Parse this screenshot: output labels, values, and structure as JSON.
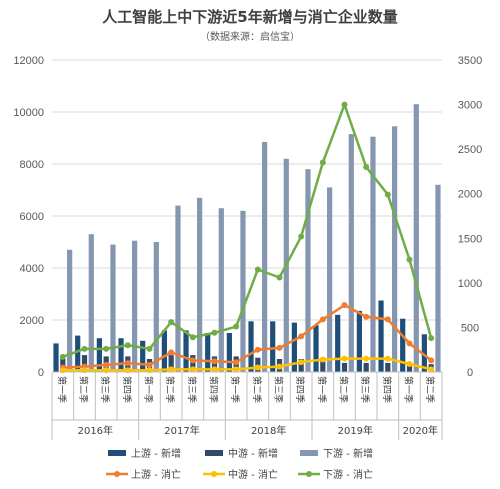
{
  "chart_data": {
    "type": "bar",
    "title": "人工智能上中下游近5年新增与消亡企业数量",
    "subtitle": "（数据来源：启信宝）",
    "categories": [
      "第一季",
      "第二季",
      "第三季",
      "第四季",
      "第一季",
      "第二季",
      "第三季",
      "第四季",
      "第一季",
      "第二季",
      "第三季",
      "第四季",
      "第一季",
      "第二季",
      "第三季",
      "第四季",
      "第一季",
      "第二季"
    ],
    "years": [
      {
        "label": "2016年",
        "start": 0,
        "end": 3
      },
      {
        "label": "2017年",
        "start": 4,
        "end": 7
      },
      {
        "label": "2018年",
        "start": 8,
        "end": 11
      },
      {
        "label": "2019年",
        "start": 12,
        "end": 15
      },
      {
        "label": "2020年",
        "start": 16,
        "end": 17
      }
    ],
    "ylim_left": [
      0,
      12000
    ],
    "yticks_left": [
      "0",
      "2000",
      "4000",
      "6000",
      "8000",
      "10000",
      "12000"
    ],
    "ylim_right": [
      0,
      3500
    ],
    "yticks_right": [
      "0",
      "500",
      "1000",
      "1500",
      "2000",
      "2500",
      "3000",
      "3500"
    ],
    "grid": true,
    "legend_position": "bottom",
    "series": [
      {
        "name": "上游 - 新增",
        "kind": "bar",
        "axis": "left",
        "color": "#1f4e79",
        "values": [
          1100,
          1400,
          1300,
          1300,
          1200,
          1600,
          1600,
          1500,
          1500,
          1950,
          1950,
          1900,
          1800,
          2200,
          2350,
          2750,
          2050,
          1450
        ]
      },
      {
        "name": "中游 - 新增",
        "kind": "bar",
        "axis": "left",
        "color": "#2f4a6b",
        "values": [
          500,
          650,
          600,
          600,
          500,
          650,
          650,
          600,
          600,
          550,
          500,
          500,
          450,
          350,
          350,
          350,
          300,
          300
        ]
      },
      {
        "name": "下游 - 新增",
        "kind": "bar",
        "axis": "left",
        "color": "#8496b0",
        "values": [
          4700,
          5300,
          4900,
          5050,
          5000,
          6400,
          6700,
          6300,
          6200,
          8850,
          8200,
          7800,
          7100,
          9150,
          9050,
          9450,
          10300,
          7200
        ]
      },
      {
        "name": "上游 - 消亡",
        "kind": "line",
        "axis": "right",
        "color": "#ed7d31",
        "values": [
          50,
          60,
          80,
          100,
          80,
          220,
          130,
          120,
          110,
          250,
          270,
          400,
          590,
          750,
          620,
          590,
          320,
          130
        ]
      },
      {
        "name": "中游 - 消亡",
        "kind": "line",
        "axis": "right",
        "color": "#ffc000",
        "values": [
          20,
          20,
          20,
          20,
          20,
          30,
          30,
          30,
          30,
          50,
          60,
          110,
          140,
          150,
          150,
          150,
          90,
          30
        ]
      },
      {
        "name": "下游 - 消亡",
        "kind": "line",
        "axis": "right",
        "color": "#70ad47",
        "values": [
          170,
          260,
          260,
          300,
          260,
          560,
          390,
          440,
          510,
          1150,
          1060,
          1520,
          2350,
          3000,
          2300,
          1990,
          1260,
          380
        ]
      }
    ]
  }
}
